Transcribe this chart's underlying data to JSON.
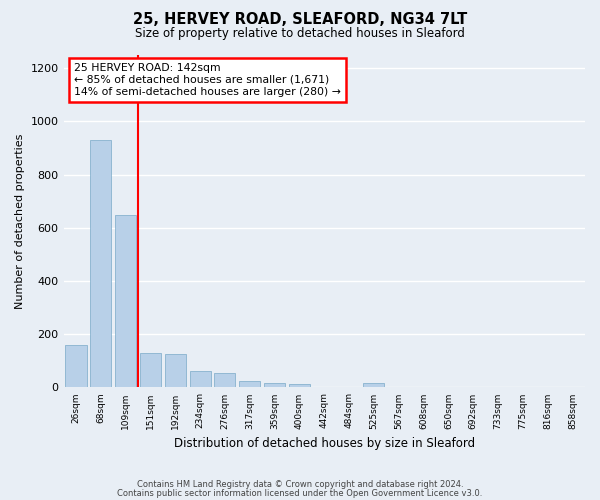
{
  "title_line1": "25, HERVEY ROAD, SLEAFORD, NG34 7LT",
  "title_line2": "Size of property relative to detached houses in Sleaford",
  "xlabel": "Distribution of detached houses by size in Sleaford",
  "ylabel": "Number of detached properties",
  "categories": [
    "26sqm",
    "68sqm",
    "109sqm",
    "151sqm",
    "192sqm",
    "234sqm",
    "276sqm",
    "317sqm",
    "359sqm",
    "400sqm",
    "442sqm",
    "484sqm",
    "525sqm",
    "567sqm",
    "608sqm",
    "650sqm",
    "692sqm",
    "733sqm",
    "775sqm",
    "816sqm",
    "858sqm"
  ],
  "values": [
    160,
    930,
    650,
    130,
    125,
    60,
    55,
    25,
    18,
    13,
    0,
    0,
    15,
    0,
    0,
    0,
    0,
    0,
    0,
    0,
    0
  ],
  "bar_color": "#b8d0e8",
  "bar_edge_color": "#7aaac8",
  "annotation_text": "25 HERVEY ROAD: 142sqm\n← 85% of detached houses are smaller (1,671)\n14% of semi-detached houses are larger (280) →",
  "annotation_box_color": "white",
  "annotation_box_edge_color": "red",
  "vline_color": "red",
  "ylim": [
    0,
    1250
  ],
  "yticks": [
    0,
    200,
    400,
    600,
    800,
    1000,
    1200
  ],
  "footer_line1": "Contains HM Land Registry data © Crown copyright and database right 2024.",
  "footer_line2": "Contains public sector information licensed under the Open Government Licence v3.0.",
  "bg_color": "#e8eef5",
  "plot_bg_color": "#e8eef5"
}
